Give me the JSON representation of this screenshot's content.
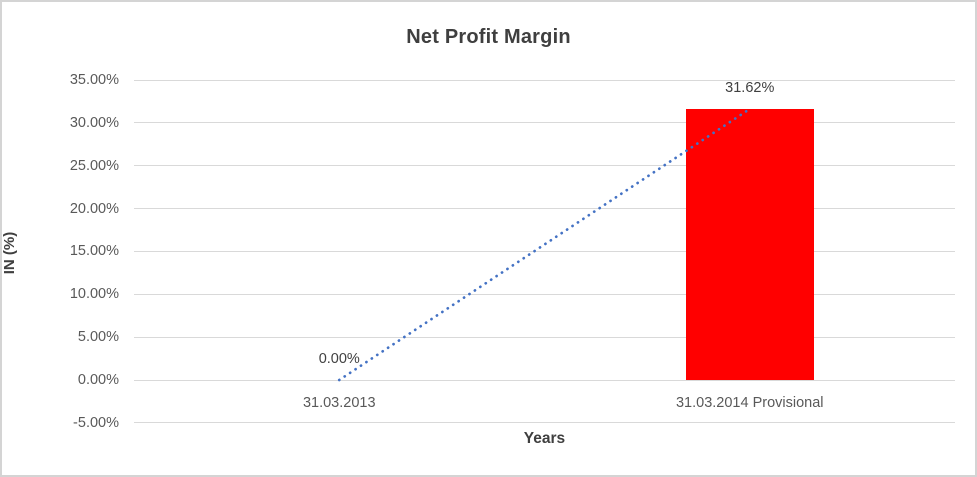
{
  "chart_data": {
    "type": "bar",
    "title": "Net Profit Margin",
    "xlabel": "Years",
    "ylabel": "IN (%)",
    "categories": [
      "31.03.2013",
      "31.03.2014 Provisional"
    ],
    "values": [
      0,
      31.62
    ],
    "data_labels": [
      "0.00%",
      "31.62%"
    ],
    "ylim": [
      -5,
      35
    ],
    "ytick_step": 5,
    "yticks": [
      {
        "value": 35,
        "label": "35.00%"
      },
      {
        "value": 30,
        "label": "30.00%"
      },
      {
        "value": 25,
        "label": "25.00%"
      },
      {
        "value": 20,
        "label": "20.00%"
      },
      {
        "value": 15,
        "label": "15.00%"
      },
      {
        "value": 10,
        "label": "10.00%"
      },
      {
        "value": 5,
        "label": "5.00%"
      },
      {
        "value": 0,
        "label": "0.00%"
      },
      {
        "value": -5,
        "label": "-5.00%"
      }
    ],
    "grid": true,
    "legend": "none",
    "bar_color": "#FF0000",
    "trendline": {
      "type": "linear",
      "style": "dotted",
      "color": "#4472C4",
      "from": {
        "category_index": 0,
        "value": 0
      },
      "to": {
        "category_index": 1,
        "value": 31.62
      }
    },
    "colors": {
      "title_text": "#3F3F3F",
      "axis_text": "#595959",
      "data_label_text": "#404040",
      "gridline": "#D9D9D9",
      "chart_border": "#D4D4D4",
      "background": "#FFFFFF"
    }
  }
}
